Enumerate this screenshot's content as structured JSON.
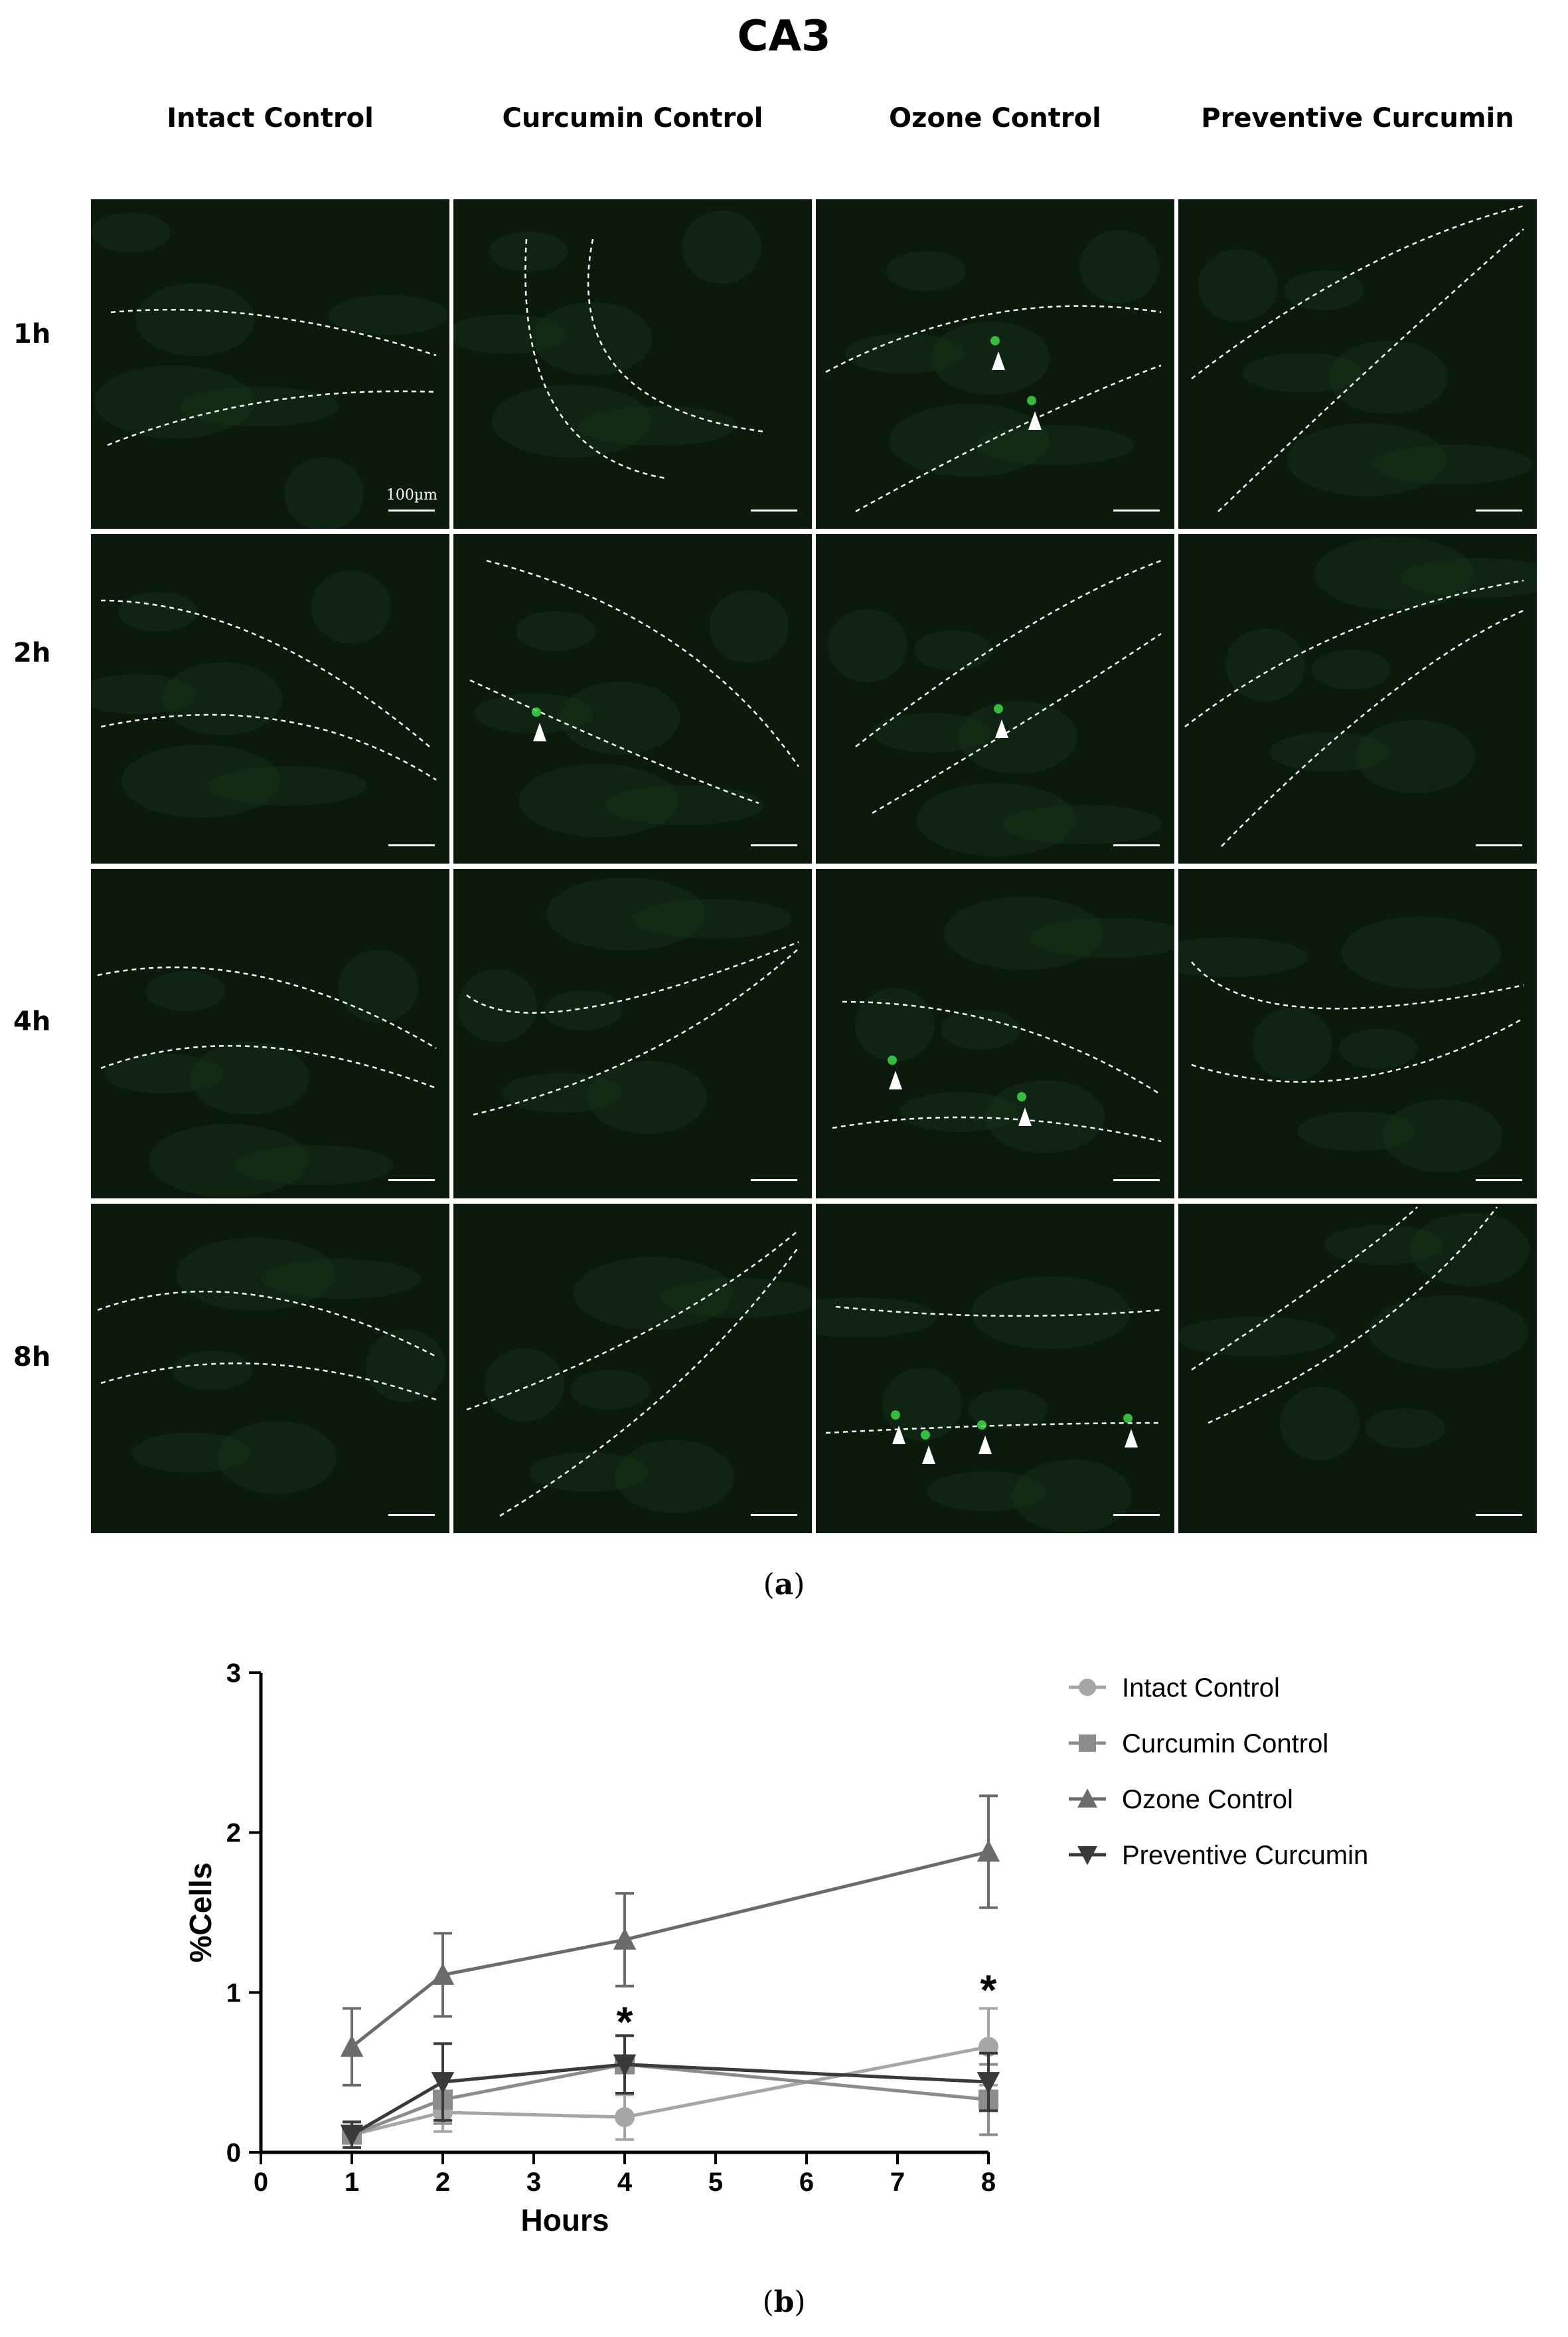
{
  "figure": {
    "title": "CA3",
    "columns": [
      "Intact Control",
      "Curcumin Control",
      "Ozone Control",
      "Preventive Curcumin"
    ],
    "rows": [
      "1h",
      "2h",
      "4h",
      "8h"
    ],
    "scale_label": "100µm",
    "arrowhead_counts": [
      [
        0,
        0,
        2,
        0
      ],
      [
        0,
        1,
        1,
        0
      ],
      [
        0,
        0,
        2,
        0
      ],
      [
        0,
        0,
        4,
        0
      ]
    ],
    "colors": {
      "micrograph_bg": "#0b1a0d",
      "dashed_outline": "#ffffff"
    },
    "caption_a": "a",
    "caption_b": "b"
  },
  "chart_data": {
    "type": "line",
    "xlabel": "Hours",
    "ylabel": "%Cells",
    "xlim": [
      0,
      8
    ],
    "ylim": [
      0,
      3
    ],
    "xticks": [
      "0",
      "1",
      "2",
      "3",
      "4",
      "5",
      "6",
      "7",
      "8"
    ],
    "yticks": [
      "0",
      "1",
      "2",
      "3"
    ],
    "x": [
      1,
      2,
      4,
      8
    ],
    "legend_position": "top-right",
    "grid": false,
    "series": [
      {
        "name": "Intact Control",
        "marker": "circle",
        "color": "#a6a6a6",
        "values": [
          0.11,
          0.25,
          0.22,
          0.66
        ],
        "errors": [
          0.08,
          0.12,
          0.14,
          0.24
        ]
      },
      {
        "name": "Curcumin Control",
        "marker": "square",
        "color": "#8c8c8c",
        "values": [
          0.11,
          0.33,
          0.55,
          0.33
        ],
        "errors": [
          0.08,
          0.15,
          0.18,
          0.22
        ]
      },
      {
        "name": "Ozone Control",
        "marker": "triangle-up",
        "color": "#6b6b6b",
        "values": [
          0.66,
          1.11,
          1.33,
          1.88
        ],
        "errors": [
          0.24,
          0.26,
          0.29,
          0.35
        ]
      },
      {
        "name": "Preventive Curcumin",
        "marker": "triangle-down",
        "color": "#3a3a3a",
        "values": [
          0.11,
          0.44,
          0.55,
          0.44
        ],
        "errors": [
          0.08,
          0.24,
          0.18,
          0.18
        ]
      }
    ],
    "annotations": [
      {
        "text": "*",
        "x": 4,
        "y": 0.85
      },
      {
        "text": "*",
        "x": 8,
        "y": 1.05
      }
    ]
  }
}
